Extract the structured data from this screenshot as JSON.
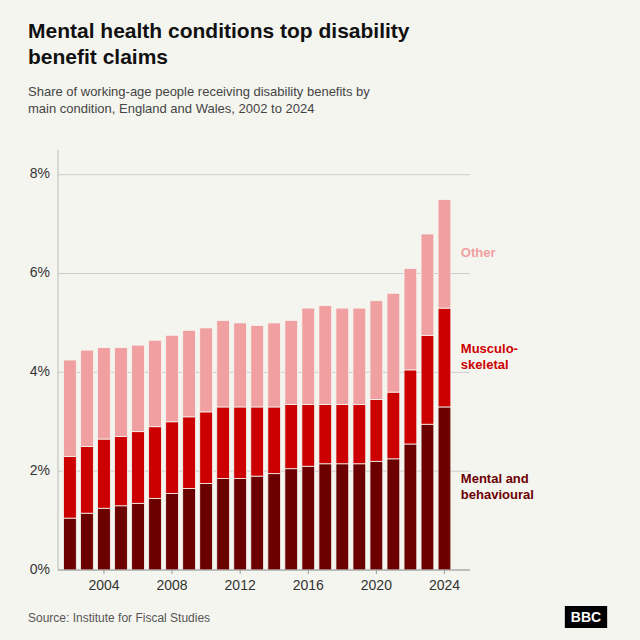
{
  "chart_data": {
    "type": "bar",
    "stacked": true,
    "grid": true,
    "title": "Mental health conditions top disability\nbenefit claims",
    "subtitle": "Share of working-age people receiving disability benefits by\nmain condition, England and Wales, 2002 to 2024",
    "annotations": [
      "Source: Institute for Fiscal Studies",
      "BBC"
    ],
    "x": [
      2002,
      2003,
      2004,
      2005,
      2006,
      2007,
      2008,
      2009,
      2010,
      2011,
      2012,
      2013,
      2014,
      2015,
      2016,
      2017,
      2018,
      2019,
      2020,
      2021,
      2022,
      2023,
      2024
    ],
    "xlim": [
      2001.3,
      2025.5
    ],
    "xticks": [
      2004,
      2008,
      2012,
      2016,
      2020,
      2024
    ],
    "ylim": [
      0,
      8.5
    ],
    "yticks": [
      {
        "value": 0,
        "label": "0%"
      },
      {
        "value": 2,
        "label": "2%"
      },
      {
        "value": 4,
        "label": "4%"
      },
      {
        "value": 6,
        "label": "6%"
      },
      {
        "value": 8,
        "label": "8%"
      }
    ],
    "series": [
      {
        "name": "Mental and\nbehavioural",
        "color": "#6b0000",
        "values": [
          1.05,
          1.15,
          1.25,
          1.3,
          1.35,
          1.45,
          1.55,
          1.65,
          1.75,
          1.85,
          1.85,
          1.9,
          1.95,
          2.05,
          2.1,
          2.15,
          2.15,
          2.15,
          2.2,
          2.25,
          2.55,
          2.95,
          3.3
        ]
      },
      {
        "name": "Musculo-\nskeletal",
        "color": "#cc0000",
        "values": [
          1.25,
          1.35,
          1.4,
          1.4,
          1.45,
          1.45,
          1.45,
          1.45,
          1.45,
          1.45,
          1.45,
          1.4,
          1.35,
          1.3,
          1.25,
          1.2,
          1.2,
          1.2,
          1.25,
          1.35,
          1.5,
          1.8,
          2.0
        ]
      },
      {
        "name": "Other",
        "color": "#f0a0a0",
        "values": [
          1.95,
          1.95,
          1.85,
          1.8,
          1.75,
          1.75,
          1.75,
          1.75,
          1.7,
          1.75,
          1.7,
          1.65,
          1.7,
          1.7,
          1.95,
          2.0,
          1.95,
          1.95,
          2.0,
          2.0,
          2.05,
          2.05,
          2.2
        ]
      }
    ]
  }
}
